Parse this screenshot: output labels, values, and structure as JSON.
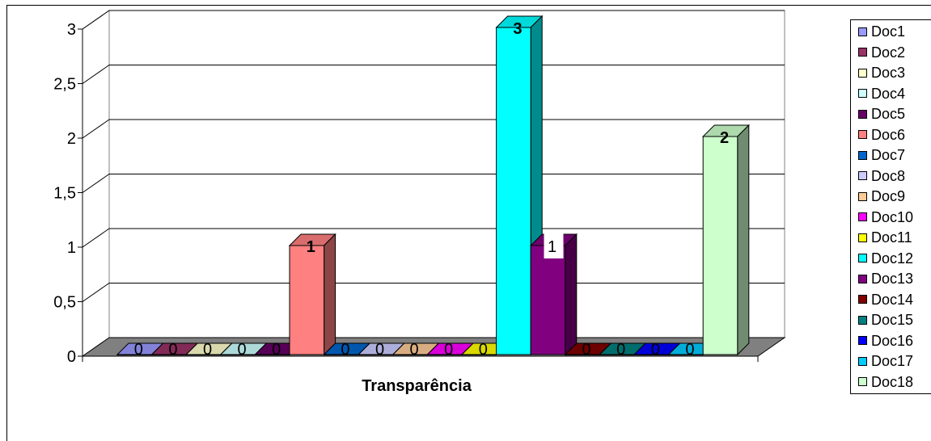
{
  "chart_data": {
    "type": "bar",
    "style": "3d-column",
    "xlabel": "Transparência",
    "categories": [
      "Transparência"
    ],
    "ylim": [
      0,
      3
    ],
    "yticks": [
      "0",
      "0,5",
      "1",
      "1,5",
      "2",
      "2,5",
      "3"
    ],
    "grid": true,
    "legend_position": "right",
    "series": [
      {
        "name": "Doc1",
        "value": 0,
        "label": "0",
        "color": "#9999ff"
      },
      {
        "name": "Doc2",
        "value": 0,
        "label": "0",
        "color": "#993366"
      },
      {
        "name": "Doc3",
        "value": 0,
        "label": "0",
        "color": "#ffffcc"
      },
      {
        "name": "Doc4",
        "value": 0,
        "label": "0",
        "color": "#ccffff"
      },
      {
        "name": "Doc5",
        "value": 0,
        "label": "0",
        "color": "#660066"
      },
      {
        "name": "Doc6",
        "value": 1,
        "label": "1",
        "color": "#ff8080"
      },
      {
        "name": "Doc7",
        "value": 0,
        "label": "0",
        "color": "#0066cc"
      },
      {
        "name": "Doc8",
        "value": 0,
        "label": "0",
        "color": "#ccccff"
      },
      {
        "name": "Doc9",
        "value": 0,
        "label": "0",
        "color": "#ffcc99"
      },
      {
        "name": "Doc10",
        "value": 0,
        "label": "0",
        "color": "#ff00ff"
      },
      {
        "name": "Doc11",
        "value": 0,
        "label": "0",
        "color": "#ffff00"
      },
      {
        "name": "Doc12",
        "value": 3,
        "label": "3",
        "color": "#00ffff"
      },
      {
        "name": "Doc13",
        "value": 1,
        "label": "1",
        "color": "#800080"
      },
      {
        "name": "Doc14",
        "value": 0,
        "label": "0",
        "color": "#800000"
      },
      {
        "name": "Doc15",
        "value": 0,
        "label": "0",
        "color": "#008080"
      },
      {
        "name": "Doc16",
        "value": 0,
        "label": "0",
        "color": "#0000ff"
      },
      {
        "name": "Doc17",
        "value": 0,
        "label": "0",
        "color": "#00ccff"
      },
      {
        "name": "Doc18",
        "value": 2,
        "label": "2",
        "color": "#ccffcc"
      }
    ]
  }
}
